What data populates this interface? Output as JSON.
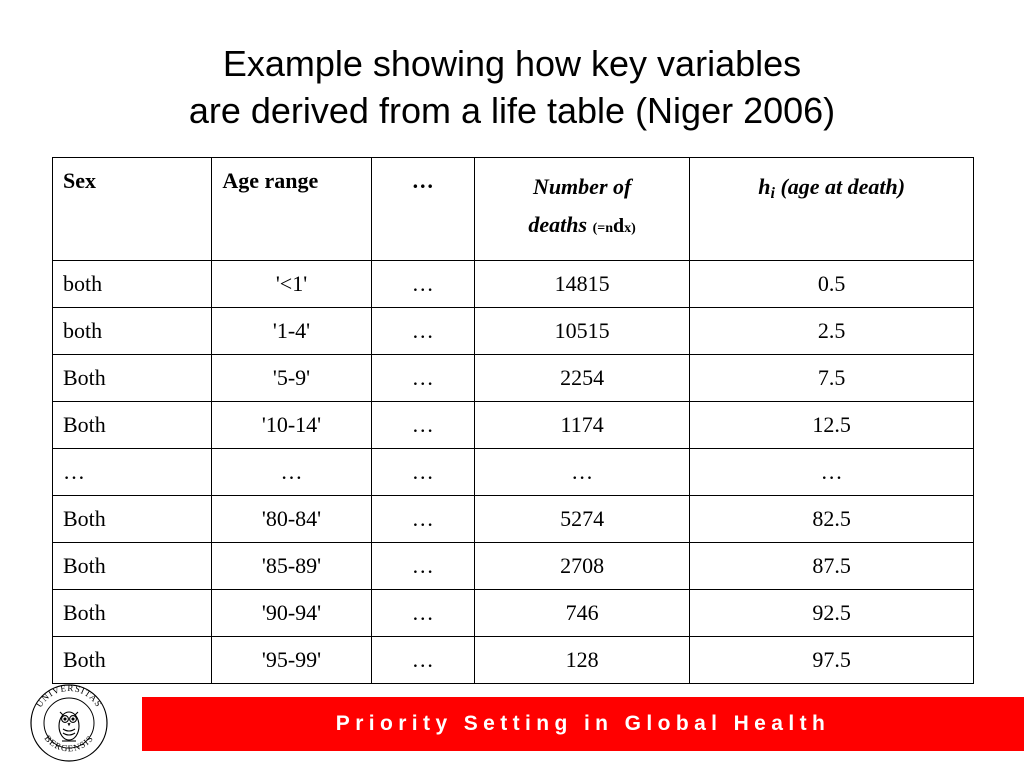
{
  "title": {
    "line1": "Example showing how key variables",
    "line2": "are derived from a life table (Niger 2006)"
  },
  "table": {
    "headers": {
      "sex": "Sex",
      "age": "Age range",
      "dots": "…",
      "num_line1": "Number of",
      "num_line2": "deaths",
      "num_sub_open": "(=",
      "num_sub_n": "n",
      "num_sub_d": "d",
      "num_sub_x": "x)",
      "h_var": "h",
      "h_sub": "i",
      "h_rest": "(age at death)"
    },
    "rows": [
      {
        "sex": "both",
        "age": "'<1'",
        "dots": "…",
        "deaths": "14815",
        "h": "0.5"
      },
      {
        "sex": "both",
        "age": "'1-4'",
        "dots": "…",
        "deaths": "10515",
        "h": "2.5"
      },
      {
        "sex": "Both",
        "age": "'5-9'",
        "dots": "…",
        "deaths": "2254",
        "h": "7.5"
      },
      {
        "sex": "Both",
        "age": "'10-14'",
        "dots": "…",
        "deaths": "1174",
        "h": "12.5"
      },
      {
        "sex": "…",
        "age": "…",
        "dots": "…",
        "deaths": "…",
        "h": "…"
      },
      {
        "sex": "Both",
        "age": "'80-84'",
        "dots": "…",
        "deaths": "5274",
        "h": "82.5"
      },
      {
        "sex": "Both",
        "age": "'85-89'",
        "dots": "…",
        "deaths": "2708",
        "h": "87.5"
      },
      {
        "sex": "Both",
        "age": "'90-94'",
        "dots": "…",
        "deaths": "746",
        "h": "92.5"
      },
      {
        "sex": "Both",
        "age": "'95-99'",
        "dots": "…",
        "deaths": "128",
        "h": "97.5"
      }
    ]
  },
  "logo": {
    "name": "university-seal-icon",
    "text_top": "UNIVERSITAS",
    "text_bottom": "BERGENSIS"
  },
  "footer": {
    "banner_text": "Priority Setting in Global Health",
    "color": "#ff0000"
  }
}
